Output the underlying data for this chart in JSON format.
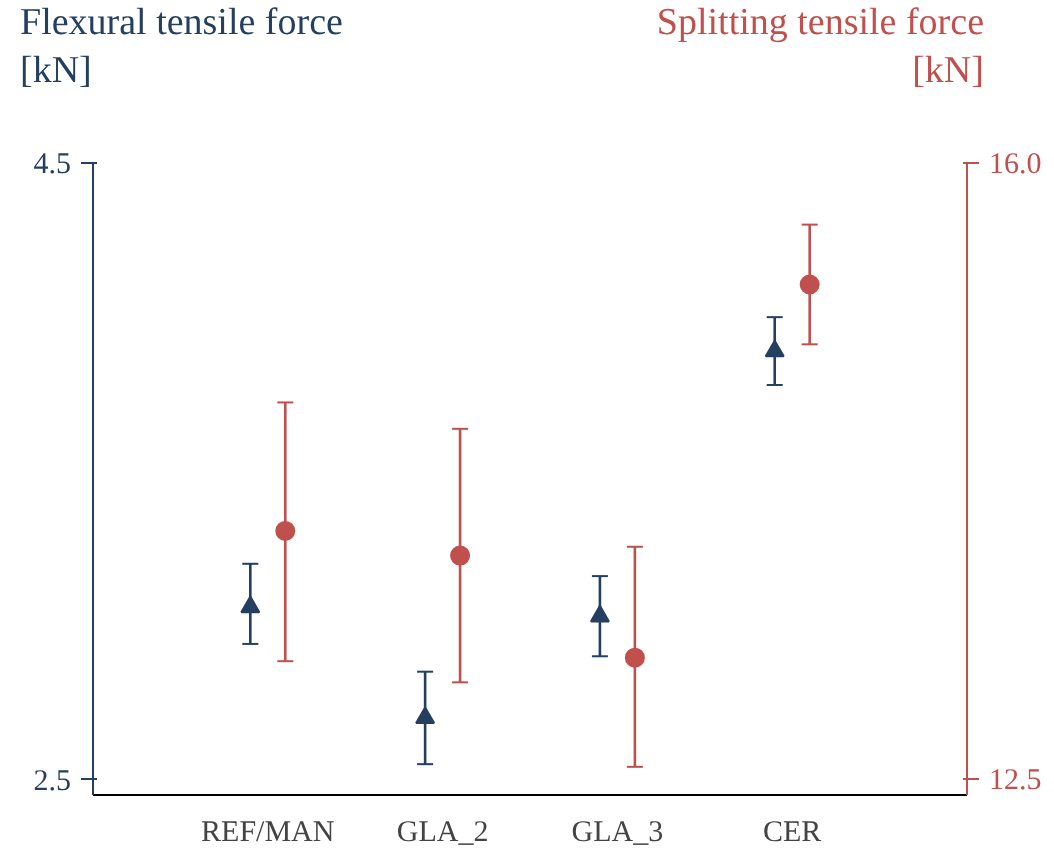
{
  "chart_data": {
    "type": "scatter",
    "ylabel": "Flexural tensile force\n[kN]",
    "y2label": "Splitting tensile force\n[kN]",
    "categories": [
      "REF/MAN",
      "GLA_2",
      "GLA_3",
      "CER"
    ],
    "series": [
      {
        "marker": "triangle",
        "color": "#243f60",
        "values": [
          3.06,
          2.7,
          3.03,
          3.89
        ],
        "errors": [
          [
            2.94,
            3.2
          ],
          [
            2.55,
            2.85
          ],
          [
            2.9,
            3.16
          ],
          [
            3.78,
            4.0
          ]
        ]
      },
      {
        "marker": "circle",
        "axis": "y2",
        "color": "#c0504d",
        "values": [
          13.91,
          13.77,
          13.19,
          15.31
        ],
        "errors": [
          [
            13.17,
            14.64
          ],
          [
            13.05,
            14.49
          ],
          [
            12.57,
            13.82
          ],
          [
            14.97,
            15.65
          ]
        ]
      }
    ],
    "ylim": [
      2.45,
      4.5
    ],
    "yticks": [
      {
        "value": 2.5,
        "label": "2.5"
      },
      {
        "value": 4.5,
        "label": "4.5"
      }
    ],
    "y2lim": [
      12.41,
      16.0
    ],
    "y2ticks": [
      {
        "value": 12.5,
        "label": "12.5"
      },
      {
        "value": 16.0,
        "label": "16.0"
      }
    ],
    "grid": false
  }
}
